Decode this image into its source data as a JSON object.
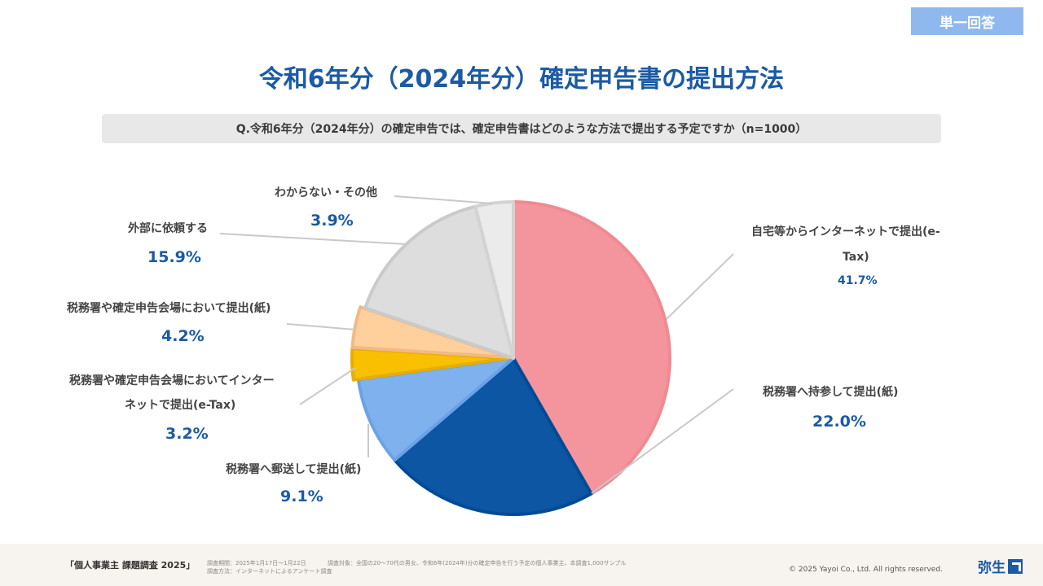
{
  "badge": "単一回答",
  "title": "令和6年分（2024年分）確定申告書の提出方法",
  "question": "Q.令和6年分（2024年分）の確定申告では、確定申告書はどのような方法で提出する予定ですか（n=1000）",
  "chart_data": {
    "type": "pie",
    "title": "令和6年分（2024年分）確定申告書の提出方法",
    "slices": [
      {
        "label": "自宅等からインターネットで提出(e-Tax)",
        "label_lines": [
          "自宅等からインターネットで提出(e-",
          "Tax)"
        ],
        "value": 41.7,
        "display": "41.7%",
        "color": "#f4949c",
        "stroke": "#ef8a93"
      },
      {
        "label": "税務署へ持参して提出(紙)",
        "label_lines": [
          "税務署へ持参して提出(紙)"
        ],
        "value": 22.0,
        "display": "22.0%",
        "color": "#0c56a3",
        "stroke": "#004b96"
      },
      {
        "label": "税務署へ郵送して提出(紙)",
        "label_lines": [
          "税務署へ郵送して提出(紙)"
        ],
        "value": 9.1,
        "display": "9.1%",
        "color": "#7fb1ee",
        "stroke": "#6aa2e6"
      },
      {
        "label": "税務署や確定申告会場においてインターネットで提出(e-Tax)",
        "label_lines": [
          "税務署や確定申告会場においてインター",
          "ネットで提出(e-Tax)"
        ],
        "value": 3.2,
        "display": "3.2%",
        "color": "#f8c000",
        "stroke": "#e6ae00"
      },
      {
        "label": "税務署や確定申告会場において提出(紙)",
        "label_lines": [
          "税務署や確定申告会場において提出(紙)"
        ],
        "value": 4.2,
        "display": "4.2%",
        "color": "#ffcf9c",
        "stroke": "#f2b985"
      },
      {
        "label": "外部に依頼する",
        "label_lines": [
          "外部に依頼する"
        ],
        "value": 15.9,
        "display": "15.9%",
        "color": "#dcdddc",
        "stroke": "#c9cbca"
      },
      {
        "label": "わからない・その他",
        "label_lines": [
          "わからない・その他"
        ],
        "value": 3.9,
        "display": "3.9%",
        "color": "#ebebeb",
        "stroke": "#d2d3d2"
      }
    ]
  },
  "footer": {
    "survey_name": "「個人事業主 課題調査 2025」",
    "period": "調査期間：2025年1月17日〜1月22日",
    "target": "調査対象：全国の20〜70代の男女、令和6年(2024年)分の確定申告を行う予定の個人事業主、本調査1,000サンプル",
    "method": "調査方法：インターネットによるアンケート調査",
    "copyright": "© 2025 Yayoi Co., Ltd.  All rights reserved.",
    "logo_text": "弥生"
  }
}
